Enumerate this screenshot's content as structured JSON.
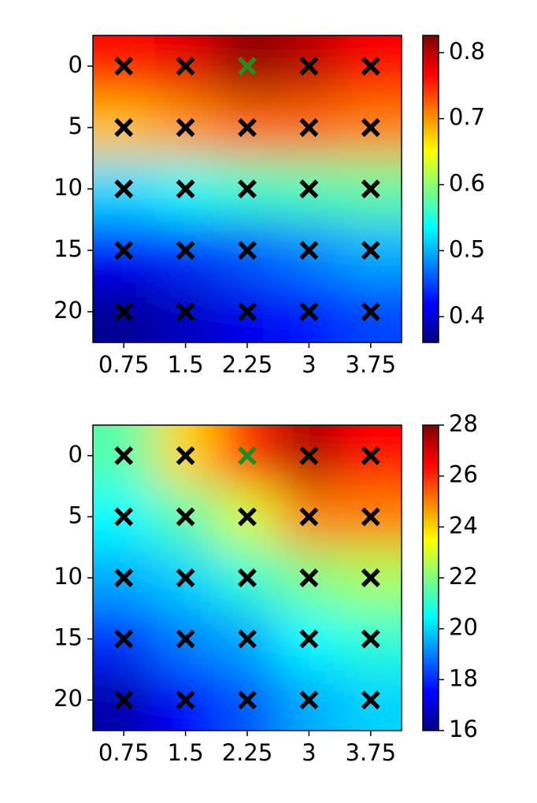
{
  "chart_data": [
    {
      "type": "heatmap",
      "x": [
        0.75,
        1.5,
        2.25,
        3,
        3.75
      ],
      "y": [
        0,
        5,
        10,
        15,
        20
      ],
      "xlim": [
        0.375,
        4.125
      ],
      "ylim": [
        22.5,
        -2.5
      ],
      "xticks": [
        0.75,
        1.5,
        2.25,
        3,
        3.75
      ],
      "yticks": [
        0,
        5,
        10,
        15,
        20
      ],
      "values": [
        [
          0.76,
          0.78,
          0.82,
          0.8,
          0.77
        ],
        [
          0.68,
          0.7,
          0.72,
          0.72,
          0.71
        ],
        [
          0.52,
          0.54,
          0.56,
          0.57,
          0.58
        ],
        [
          0.42,
          0.44,
          0.46,
          0.48,
          0.5
        ],
        [
          0.37,
          0.39,
          0.41,
          0.43,
          0.45
        ]
      ],
      "colormap": "jet",
      "clim": [
        0.361,
        0.826
      ],
      "cticks": [
        0.4,
        0.5,
        0.6,
        0.7,
        0.8
      ],
      "marker_color": "#000000",
      "highlight": {
        "x": 2.25,
        "y": 0,
        "color": "#228b22"
      }
    },
    {
      "type": "heatmap",
      "x": [
        0.75,
        1.5,
        2.25,
        3,
        3.75
      ],
      "y": [
        0,
        5,
        10,
        15,
        20
      ],
      "xlim": [
        0.375,
        4.125
      ],
      "ylim": [
        22.5,
        -2.5
      ],
      "xticks": [
        0.75,
        1.5,
        2.25,
        3,
        3.75
      ],
      "yticks": [
        0,
        5,
        10,
        15,
        20
      ],
      "values": [
        [
          21.5,
          24,
          26,
          27.5,
          26.5
        ],
        [
          20.5,
          21.5,
          23,
          25,
          25
        ],
        [
          19.5,
          20,
          21,
          22,
          22.5
        ],
        [
          18,
          19,
          19.5,
          20.5,
          21
        ],
        [
          16.5,
          17.5,
          18.5,
          19.5,
          20
        ]
      ],
      "colormap": "jet",
      "clim": [
        16,
        28
      ],
      "cticks": [
        16,
        18,
        20,
        22,
        24,
        26,
        28
      ],
      "marker_color": "#000000",
      "highlight": {
        "x": 2.25,
        "y": 0,
        "color": "#228b22"
      }
    }
  ]
}
